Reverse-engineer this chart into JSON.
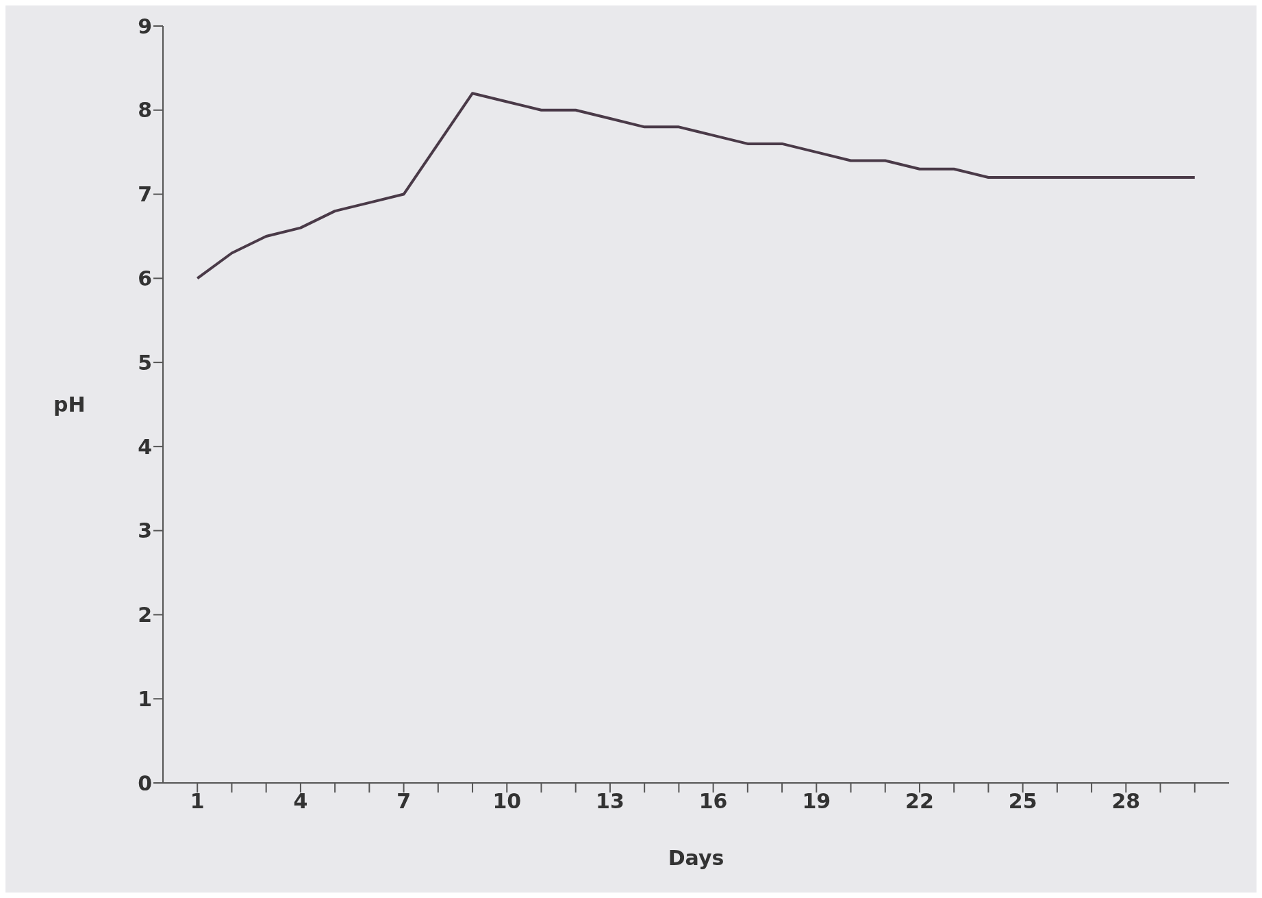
{
  "chart_data": {
    "type": "line",
    "xlabel": "Days",
    "ylabel": "pH",
    "x": [
      1,
      2,
      3,
      4,
      5,
      6,
      7,
      8,
      9,
      10,
      11,
      12,
      13,
      14,
      15,
      16,
      17,
      18,
      19,
      20,
      21,
      22,
      23,
      24,
      25,
      26,
      27,
      28,
      29,
      30
    ],
    "series": [
      {
        "color": "#4a3a48",
        "values": [
          6.0,
          6.3,
          6.5,
          6.6,
          6.8,
          6.9,
          7.0,
          7.6,
          8.2,
          8.1,
          8.0,
          8.0,
          7.9,
          7.8,
          7.8,
          7.7,
          7.6,
          7.6,
          7.5,
          7.4,
          7.4,
          7.3,
          7.3,
          7.2,
          7.2,
          7.2,
          7.2,
          7.2,
          7.2,
          7.2
        ]
      }
    ],
    "xlim": [
      0,
      31
    ],
    "xticks": [
      1,
      {
        "value": 2,
        "label": null
      },
      {
        "value": 3,
        "label": null
      },
      4,
      {
        "value": 5,
        "label": null
      },
      {
        "value": 6,
        "label": null
      },
      7,
      {
        "value": 8,
        "label": null
      },
      {
        "value": 9,
        "label": null
      },
      10,
      {
        "value": 11,
        "label": null
      },
      {
        "value": 12,
        "label": null
      },
      13,
      {
        "value": 14,
        "label": null
      },
      {
        "value": 15,
        "label": null
      },
      16,
      {
        "value": 17,
        "label": null
      },
      {
        "value": 18,
        "label": null
      },
      19,
      {
        "value": 20,
        "label": null
      },
      {
        "value": 21,
        "label": null
      },
      22,
      {
        "value": 23,
        "label": null
      },
      {
        "value": 24,
        "label": null
      },
      25,
      {
        "value": 26,
        "label": null
      },
      {
        "value": 27,
        "label": null
      },
      28,
      {
        "value": 29,
        "label": null
      },
      {
        "value": 30,
        "label": null
      }
    ],
    "ylim": [
      0,
      9
    ],
    "yticks": [
      0,
      1,
      2,
      3,
      4,
      5,
      6,
      7,
      8,
      9
    ],
    "grid": false,
    "legend": false,
    "marker": "none",
    "line_style": "solid"
  }
}
